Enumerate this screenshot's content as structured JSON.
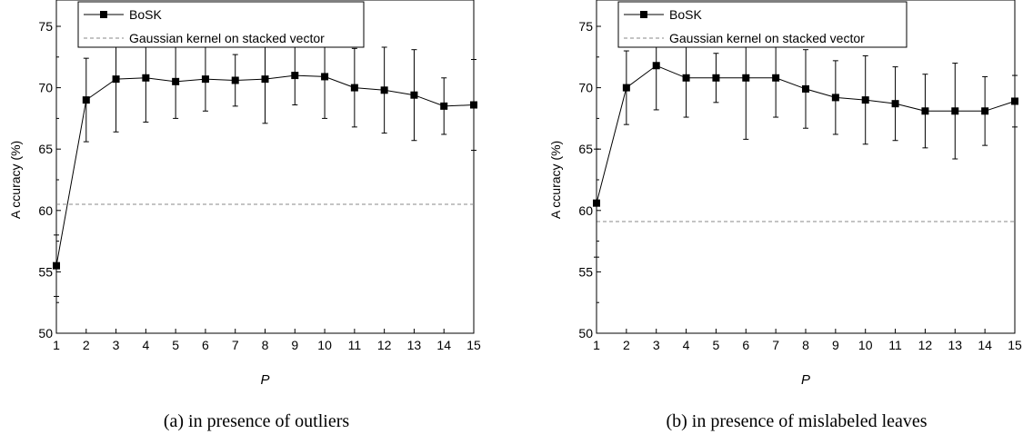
{
  "chart_data": [
    {
      "type": "line",
      "caption": "(a) in presence of outliers",
      "xlabel": "P",
      "ylabel": "A ccuracy (%)",
      "xlim": [
        1,
        15
      ],
      "ylim": [
        50,
        75
      ],
      "x_ticks": [
        1,
        2,
        3,
        4,
        5,
        6,
        7,
        8,
        9,
        10,
        11,
        12,
        13,
        14,
        15
      ],
      "y_ticks": [
        50,
        55,
        60,
        65,
        70,
        75
      ],
      "grid": false,
      "legend_position": "top-left",
      "series": [
        {
          "name": "BoSK",
          "style": "solid line with square markers",
          "color": "#000000",
          "x": [
            1,
            2,
            3,
            4,
            5,
            6,
            7,
            8,
            9,
            10,
            11,
            12,
            13,
            14,
            15
          ],
          "y": [
            55.5,
            69.0,
            70.7,
            70.8,
            70.5,
            70.7,
            70.6,
            70.7,
            71.0,
            70.9,
            70.0,
            69.8,
            69.4,
            68.5,
            68.6
          ],
          "error": [
            2.5,
            3.4,
            4.3,
            3.6,
            3.0,
            2.6,
            2.1,
            3.6,
            2.4,
            3.4,
            3.2,
            3.5,
            3.7,
            2.3,
            3.7
          ]
        },
        {
          "name": "Gaussian kernel on stacked vector",
          "style": "dashed",
          "color": "#888888",
          "constant": 60.5
        }
      ]
    },
    {
      "type": "line",
      "caption": "(b) in presence of mislabeled leaves",
      "xlabel": "P",
      "ylabel": "A ccuracy (%)",
      "xlim": [
        1,
        15
      ],
      "ylim": [
        50,
        75
      ],
      "x_ticks": [
        1,
        2,
        3,
        4,
        5,
        6,
        7,
        8,
        9,
        10,
        11,
        12,
        13,
        14,
        15
      ],
      "y_ticks": [
        50,
        55,
        60,
        65,
        70,
        75
      ],
      "grid": false,
      "legend_position": "top-left",
      "series": [
        {
          "name": "BoSK",
          "style": "solid line with square markers",
          "color": "#000000",
          "x": [
            1,
            2,
            3,
            4,
            5,
            6,
            7,
            8,
            9,
            10,
            11,
            12,
            13,
            14,
            15
          ],
          "y": [
            60.6,
            70.0,
            71.8,
            70.8,
            70.8,
            70.8,
            70.8,
            69.9,
            69.2,
            69.0,
            68.7,
            68.1,
            68.1,
            68.1,
            68.9
          ],
          "error": [
            4.4,
            3.0,
            3.6,
            3.2,
            2.0,
            5.0,
            3.2,
            3.2,
            3.0,
            3.6,
            3.0,
            3.0,
            3.9,
            2.8,
            2.1
          ]
        },
        {
          "name": "Gaussian kernel on stacked vector",
          "style": "dashed",
          "color": "#888888",
          "constant": 59.1
        }
      ]
    }
  ]
}
